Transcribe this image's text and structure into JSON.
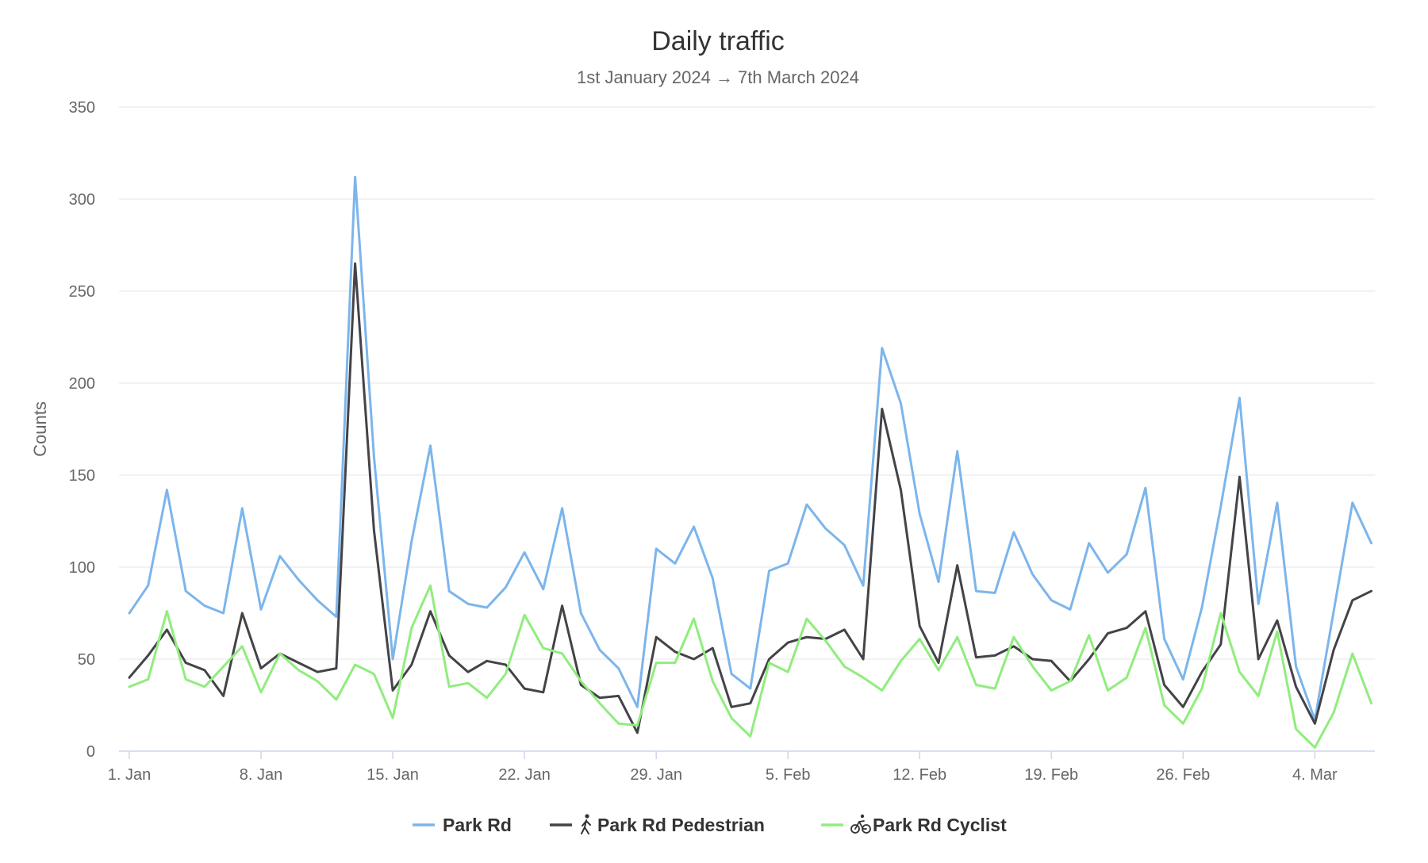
{
  "chart_data": {
    "type": "line",
    "title": "Daily traffic",
    "subtitle": "1st January 2024 → 7th March 2024",
    "ylabel": "Counts",
    "xlabel": "",
    "ylim": [
      0,
      350
    ],
    "yticks": [
      0,
      50,
      100,
      150,
      200,
      250,
      300,
      350
    ],
    "x_start": "2024-01-01",
    "x_end": "2024-03-07",
    "xticks": [
      {
        "label": "1. Jan",
        "date": "2024-01-01"
      },
      {
        "label": "8. Jan",
        "date": "2024-01-08"
      },
      {
        "label": "15. Jan",
        "date": "2024-01-15"
      },
      {
        "label": "22. Jan",
        "date": "2024-01-22"
      },
      {
        "label": "29. Jan",
        "date": "2024-01-29"
      },
      {
        "label": "5. Feb",
        "date": "2024-02-05"
      },
      {
        "label": "12. Feb",
        "date": "2024-02-12"
      },
      {
        "label": "19. Feb",
        "date": "2024-02-19"
      },
      {
        "label": "26. Feb",
        "date": "2024-02-26"
      },
      {
        "label": "4. Mar",
        "date": "2024-03-04"
      }
    ],
    "grid": true,
    "legend_position": "bottom-center",
    "series": [
      {
        "name": "Park Rd",
        "color": "#7cb5ec",
        "icon": "",
        "values": [
          75,
          90,
          142,
          87,
          79,
          75,
          132,
          77,
          106,
          93,
          82,
          73,
          312,
          160,
          50,
          114,
          166,
          87,
          80,
          78,
          89,
          108,
          88,
          132,
          75,
          55,
          45,
          24,
          110,
          102,
          122,
          94,
          42,
          34,
          98,
          102,
          134,
          121,
          112,
          90,
          219,
          189,
          129,
          92,
          163,
          87,
          86,
          119,
          96,
          82,
          77,
          113,
          97,
          107,
          143,
          61,
          39,
          78,
          133,
          192,
          80,
          135,
          46,
          17,
          76,
          135,
          113
        ]
      },
      {
        "name": "Park Rd Pedestrian",
        "color": "#434348",
        "icon": "pedestrian-icon",
        "values": [
          40,
          52,
          66,
          48,
          44,
          30,
          75,
          45,
          53,
          48,
          43,
          45,
          265,
          120,
          33,
          47,
          76,
          52,
          43,
          49,
          47,
          34,
          32,
          79,
          36,
          29,
          30,
          10,
          62,
          54,
          50,
          56,
          24,
          26,
          50,
          59,
          62,
          61,
          66,
          50,
          186,
          142,
          68,
          48,
          101,
          51,
          52,
          57,
          50,
          49,
          38,
          50,
          64,
          67,
          76,
          36,
          24,
          43,
          58,
          149,
          50,
          71,
          35,
          15,
          55,
          82,
          87
        ]
      },
      {
        "name": "Park Rd Cyclist",
        "color": "#90ed7d",
        "icon": "cyclist-icon",
        "values": [
          35,
          39,
          76,
          39,
          35,
          46,
          57,
          32,
          53,
          44,
          38,
          28,
          47,
          42,
          18,
          67,
          90,
          35,
          37,
          29,
          42,
          74,
          56,
          53,
          38,
          26,
          15,
          14,
          48,
          48,
          72,
          38,
          18,
          8,
          48,
          43,
          72,
          60,
          46,
          40,
          33,
          49,
          61,
          44,
          62,
          36,
          34,
          62,
          46,
          33,
          38,
          63,
          33,
          40,
          67,
          25,
          15,
          34,
          75,
          43,
          30,
          65,
          12,
          2,
          21,
          53,
          26
        ]
      }
    ]
  }
}
